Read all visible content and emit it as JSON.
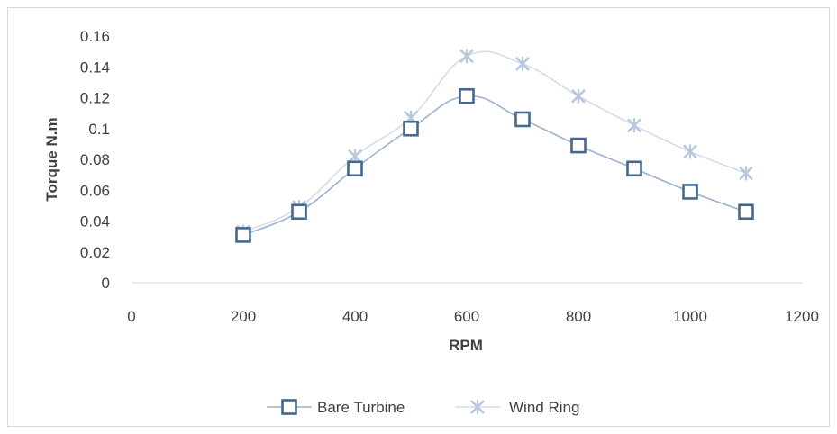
{
  "chart_data": {
    "type": "line",
    "title": "",
    "xlabel": "RPM",
    "ylabel": "Torque N.m",
    "xlim": [
      0,
      1200
    ],
    "ylim": [
      0,
      0.16
    ],
    "x_ticks": [
      0,
      200,
      400,
      600,
      800,
      1000,
      1200
    ],
    "x_tick_labels": [
      "0",
      "200",
      "400",
      "600",
      "800",
      "1000",
      "1200"
    ],
    "y_ticks": [
      0,
      0.02,
      0.04,
      0.06,
      0.08,
      0.1,
      0.12,
      0.14,
      0.16
    ],
    "y_tick_labels": [
      "0",
      "0.02",
      "0.04",
      "0.06",
      "0.08",
      "0.1",
      "0.12",
      "0.14",
      "0.16"
    ],
    "grid": false,
    "legend_position": "bottom",
    "x": [
      200,
      300,
      400,
      500,
      600,
      700,
      800,
      900,
      1000,
      1100
    ],
    "series": [
      {
        "name": "Bare Turbine",
        "marker": "square",
        "color": "#44688f",
        "line_color": "#9db2cf",
        "values": [
          0.031,
          0.046,
          0.074,
          0.1,
          0.121,
          0.106,
          0.089,
          0.074,
          0.059,
          0.046
        ]
      },
      {
        "name": "Wind Ring",
        "marker": "x-star",
        "color": "#b9c7dc",
        "line_color": "#d3dceb",
        "values": [
          0.033,
          0.049,
          0.082,
          0.107,
          0.147,
          0.142,
          0.121,
          0.102,
          0.085,
          0.071
        ]
      }
    ]
  }
}
